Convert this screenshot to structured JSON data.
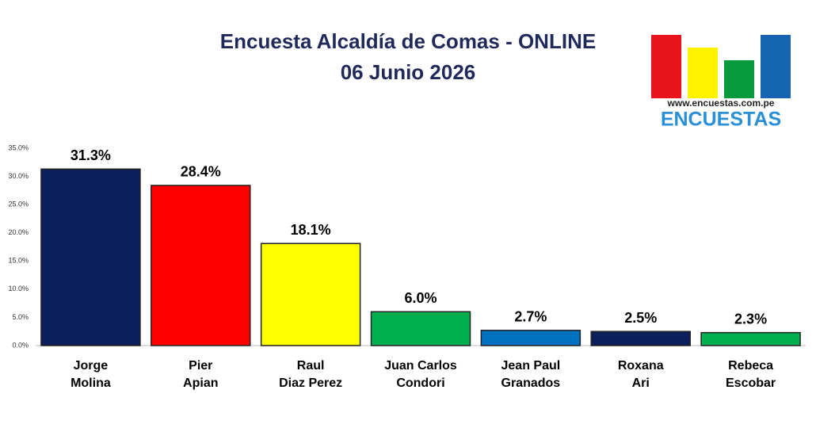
{
  "chart_data": {
    "type": "bar",
    "title": "Encuesta Alcaldía de Comas - ONLINE",
    "subtitle": "06 Junio 2026",
    "categories": [
      [
        "Jorge",
        "Molina"
      ],
      [
        "Pier",
        "Apian"
      ],
      [
        "Raul",
        "Diaz Perez"
      ],
      [
        "Juan Carlos",
        "Condori"
      ],
      [
        "Jean Paul",
        "Granados"
      ],
      [
        "Roxana",
        "Ari"
      ],
      [
        "Rebeca",
        "Escobar"
      ]
    ],
    "values": [
      31.3,
      28.4,
      18.1,
      6.0,
      2.7,
      2.5,
      2.3
    ],
    "value_labels": [
      "31.3%",
      "28.4%",
      "18.1%",
      "6.0%",
      "2.7%",
      "2.5%",
      "2.3%"
    ],
    "colors": [
      "#0a1f5c",
      "#ff0000",
      "#ffff00",
      "#00b050",
      "#0070c0",
      "#0a1f5c",
      "#00b050"
    ],
    "ylim": [
      0,
      35
    ],
    "yticks": [
      {
        "value": 0,
        "label": "0.0%"
      },
      {
        "value": 5,
        "label": "5.0%"
      },
      {
        "value": 10,
        "label": "10.0%"
      },
      {
        "value": 15,
        "label": "15.0%"
      },
      {
        "value": 20,
        "label": "20.0%"
      },
      {
        "value": 25,
        "label": "25.0%"
      },
      {
        "value": 30,
        "label": "30.0%"
      },
      {
        "value": 35,
        "label": "35.0%"
      }
    ],
    "grid": false
  },
  "logo": {
    "url": "www.encuestas.com.pe",
    "name": "ENCUESTAS"
  }
}
